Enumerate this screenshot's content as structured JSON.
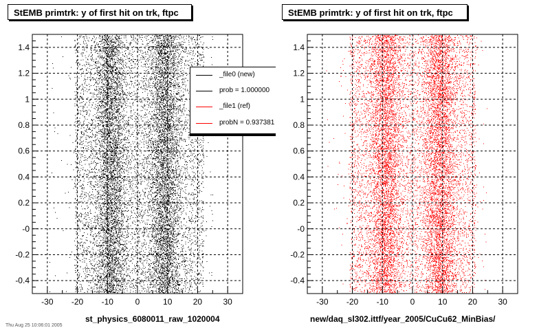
{
  "chart_data": [
    {
      "type": "scatter",
      "title": "StEMB primtrk: y of first hit on trk, ftpc",
      "xlabel": "st_physics_6080011_raw_1020004",
      "ylabel": "",
      "xlim": [
        -35,
        35
      ],
      "ylim": [
        -0.5,
        1.5
      ],
      "x_ticks": [
        -30,
        -20,
        -10,
        0,
        10,
        20,
        30
      ],
      "y_ticks": [
        -0.4,
        -0.2,
        0,
        0.2,
        0.4,
        0.6,
        0.8,
        1,
        1.2,
        1.4
      ],
      "x_tick_labels": [
        "-30",
        "-20",
        "-10",
        "0",
        "10",
        "20",
        "30"
      ],
      "y_tick_labels": [
        "-0.4",
        "-0.2",
        "-0",
        "0.2",
        "0.4",
        "0.6",
        "0.8",
        "1",
        "1.2",
        "1.4"
      ],
      "grid": true,
      "series": [
        {
          "name": "_file0 (new)",
          "color": "#000000",
          "description_ranges": {
            "x_min": -21,
            "x_max": 22,
            "density_peaks_x": [
              -9,
              9
            ]
          }
        }
      ],
      "legend": {
        "placement": "top-right",
        "entries": [
          {
            "label": "_file0 (new)",
            "color": "#000000"
          },
          {
            "label": "prob = 1.000000",
            "color": "#000000"
          },
          {
            "label": "_file1 (ref)",
            "color": "#ff0000"
          },
          {
            "label": "probN = 0.937381",
            "color": "#ff0000"
          }
        ]
      }
    },
    {
      "type": "scatter",
      "title": "StEMB primtrk: y of first hit on trk, ftpc",
      "xlabel": "new/daq_sl302.ittf/year_2005/CuCu62_MinBias/",
      "ylabel": "",
      "xlim": [
        -35,
        35
      ],
      "ylim": [
        -0.5,
        1.5
      ],
      "x_ticks": [
        -30,
        -20,
        -10,
        0,
        10,
        20,
        30
      ],
      "y_ticks": [
        -0.4,
        -0.2,
        0,
        0.2,
        0.4,
        0.6,
        0.8,
        1,
        1.2,
        1.4
      ],
      "x_tick_labels": [
        "-30",
        "-20",
        "-10",
        "0",
        "10",
        "20",
        "30"
      ],
      "y_tick_labels": [
        "-0.4",
        "-0.2",
        "-0",
        "0.2",
        "0.4",
        "0.6",
        "0.8",
        "1",
        "1.2",
        "1.4"
      ],
      "grid": true,
      "series": [
        {
          "name": "_file1 (ref)",
          "color": "#ff0000",
          "description_ranges": {
            "x_min": -21,
            "x_max": 21,
            "density_peaks_x": [
              -9,
              9
            ]
          }
        }
      ]
    }
  ],
  "footer_text": "Thu Aug 25 10:06:01 2005"
}
